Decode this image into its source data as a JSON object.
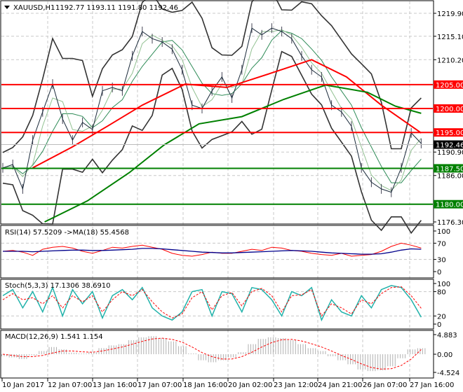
{
  "header": {
    "symbol": "XAUUSD,H1",
    "ohlc": "1192.77 1193.11 1191.80 1192.46"
  },
  "colors": {
    "ma_fast": "#ff0000",
    "ma_slow": "#008000",
    "bands": "#333333",
    "price": "#1a2a3a",
    "resistance": "#ff0000",
    "support": "#008000",
    "rsi": "#ff0000",
    "rsi_ma": "#00008b",
    "stoch_main": "#20b2aa",
    "stoch_signal": "#ff0000",
    "macd_hist": "#b0b0b0",
    "macd_signal": "#ff0000"
  },
  "chart_data": [
    {
      "type": "line",
      "title": "XAUUSD,H1",
      "ylim": [
        1176.3,
        1219.9
      ],
      "y_ticks": [
        "1219.90",
        "1215.10",
        "1210.20",
        "1190.90",
        "1186.00",
        "1176.30"
      ],
      "x_ticks": [
        "10 Jan 2017",
        "12 Jan 07:00",
        "13 Jan 16:00",
        "17 Jan 07:00",
        "18 Jan 16:00",
        "20 Jan 02:00",
        "23 Jan 12:00",
        "24 Jan 21:00",
        "26 Jan 07:00",
        "27 Jan 16:00"
      ],
      "current_price": "1192.46",
      "levels": [
        {
          "label": "1205.00",
          "value": 1205.0,
          "kind": "resistance"
        },
        {
          "label": "1200.00",
          "value": 1200.0,
          "kind": "resistance"
        },
        {
          "label": "1195.00",
          "value": 1195.0,
          "kind": "resistance"
        },
        {
          "label": "1187.50",
          "value": 1187.5,
          "kind": "support"
        },
        {
          "label": "1180.00",
          "value": 1180.0,
          "kind": "support"
        }
      ],
      "series": [
        {
          "name": "Close",
          "values": [
            1187.6,
            1188.3,
            1183.2,
            1193.4,
            1199.3,
            1205.1,
            1197.8,
            1193.4,
            1197.1,
            1195.6,
            1203.7,
            1204.4,
            1203.7,
            1211.0,
            1216.1,
            1214.6,
            1213.9,
            1212.4,
            1208.1,
            1200.7,
            1200.0,
            1203.7,
            1206.6,
            1202.2,
            1208.1,
            1216.8,
            1215.4,
            1216.8,
            1216.1,
            1214.6,
            1211.0,
            1208.1,
            1206.6,
            1200.7,
            1199.3,
            1196.3,
            1187.6,
            1184.6,
            1183.2,
            1182.5,
            1187.6,
            1194.9,
            1192.7
          ]
        },
        {
          "name": "MA100",
          "x": [
            3,
            7,
            10.5,
            14,
            18.3,
            22.5,
            26.8,
            31,
            34.5,
            38,
            42
          ],
          "values": [
            1187.6,
            1192.0,
            1196.3,
            1200.7,
            1205.1,
            1204.4,
            1207.3,
            1210.2,
            1206.6,
            1200.7,
            1194.9
          ]
        },
        {
          "name": "MA200",
          "x": [
            4.2,
            8.5,
            12.7,
            16.2,
            19.7,
            24,
            28.2,
            32.4,
            36.6,
            39.4,
            42
          ],
          "values": [
            1176.3,
            1180.7,
            1186.6,
            1192.4,
            1196.8,
            1198.3,
            1201.9,
            1204.9,
            1203.4,
            1200.5,
            1199.0
          ]
        }
      ]
    },
    {
      "type": "line",
      "title": "RSI(14) 57.5209 ->MA(18) 55.4568",
      "ylim": [
        0,
        100
      ],
      "y_ticks": [
        "100",
        "70",
        "30",
        "0"
      ],
      "series": [
        {
          "name": "RSI(14)",
          "values": [
            50,
            52,
            48,
            40,
            55,
            60,
            62,
            58,
            50,
            45,
            52,
            60,
            58,
            62,
            65,
            60,
            55,
            45,
            40,
            38,
            42,
            48,
            45,
            45,
            50,
            55,
            52,
            60,
            58,
            52,
            50,
            45,
            42,
            40,
            45,
            38,
            40,
            42,
            50,
            62,
            70,
            65,
            58
          ]
        },
        {
          "name": "MA(18)",
          "values": [
            50,
            50,
            50,
            49,
            50,
            51,
            52,
            53,
            53,
            52,
            52,
            53,
            54,
            55,
            57,
            57,
            56,
            54,
            52,
            50,
            48,
            47,
            46,
            46,
            47,
            48,
            49,
            50,
            51,
            52,
            51,
            50,
            48,
            46,
            45,
            44,
            43,
            43,
            44,
            48,
            53,
            56,
            55
          ]
        }
      ]
    },
    {
      "type": "line",
      "title": "Stoch(5,3,3) 17.1306 38.6910",
      "ylim": [
        0,
        100
      ],
      "y_ticks": [
        "100",
        "80",
        "20",
        "0"
      ],
      "series": [
        {
          "name": "%K",
          "values": [
            70,
            85,
            40,
            80,
            30,
            90,
            20,
            85,
            50,
            80,
            15,
            70,
            85,
            60,
            90,
            40,
            20,
            10,
            30,
            80,
            85,
            20,
            80,
            75,
            30,
            90,
            85,
            60,
            20,
            80,
            70,
            90,
            10,
            60,
            30,
            20,
            70,
            40,
            85,
            95,
            90,
            60,
            17
          ]
        },
        {
          "name": "%D",
          "values": [
            60,
            75,
            60,
            65,
            50,
            70,
            40,
            70,
            55,
            70,
            30,
            60,
            80,
            70,
            85,
            55,
            30,
            15,
            25,
            65,
            80,
            35,
            70,
            78,
            45,
            80,
            88,
            70,
            30,
            70,
            72,
            85,
            20,
            50,
            40,
            25,
            60,
            50,
            75,
            90,
            92,
            70,
            39
          ]
        }
      ]
    },
    {
      "type": "bar",
      "title": "MACD(12,26,9) 1.541 1.154",
      "ylim": [
        -4.524,
        4.883
      ],
      "y_ticks": [
        "4.883",
        "0.00",
        "-4.524"
      ],
      "series": [
        {
          "name": "MACD",
          "values": [
            -0.5,
            -0.8,
            -1.2,
            -0.3,
            0.8,
            1.8,
            1.2,
            0.4,
            0.2,
            0.5,
            1.5,
            2.2,
            2.5,
            3.5,
            4.2,
            4.5,
            4.0,
            3.2,
            2.0,
            0.2,
            -1.5,
            -2.0,
            -1.5,
            -0.8,
            0.5,
            2.5,
            3.8,
            4.2,
            4.0,
            3.5,
            2.5,
            1.5,
            0.8,
            -0.5,
            -1.5,
            -2.5,
            -3.8,
            -4.2,
            -4.0,
            -3.0,
            -1.0,
            1.2,
            1.5
          ]
        },
        {
          "name": "Signal",
          "values": [
            0,
            -0.3,
            -0.6,
            -0.6,
            -0.3,
            0.3,
            0.8,
            0.8,
            0.6,
            0.5,
            0.8,
            1.3,
            1.8,
            2.5,
            3.2,
            3.8,
            4.0,
            3.7,
            3.0,
            1.8,
            0.4,
            -0.6,
            -1.2,
            -1.2,
            -0.6,
            0.5,
            1.8,
            2.9,
            3.6,
            3.7,
            3.3,
            2.6,
            1.8,
            0.8,
            -0.3,
            -1.3,
            -2.4,
            -3.3,
            -3.7,
            -3.6,
            -2.8,
            -1.2,
            1.15
          ]
        }
      ]
    }
  ]
}
